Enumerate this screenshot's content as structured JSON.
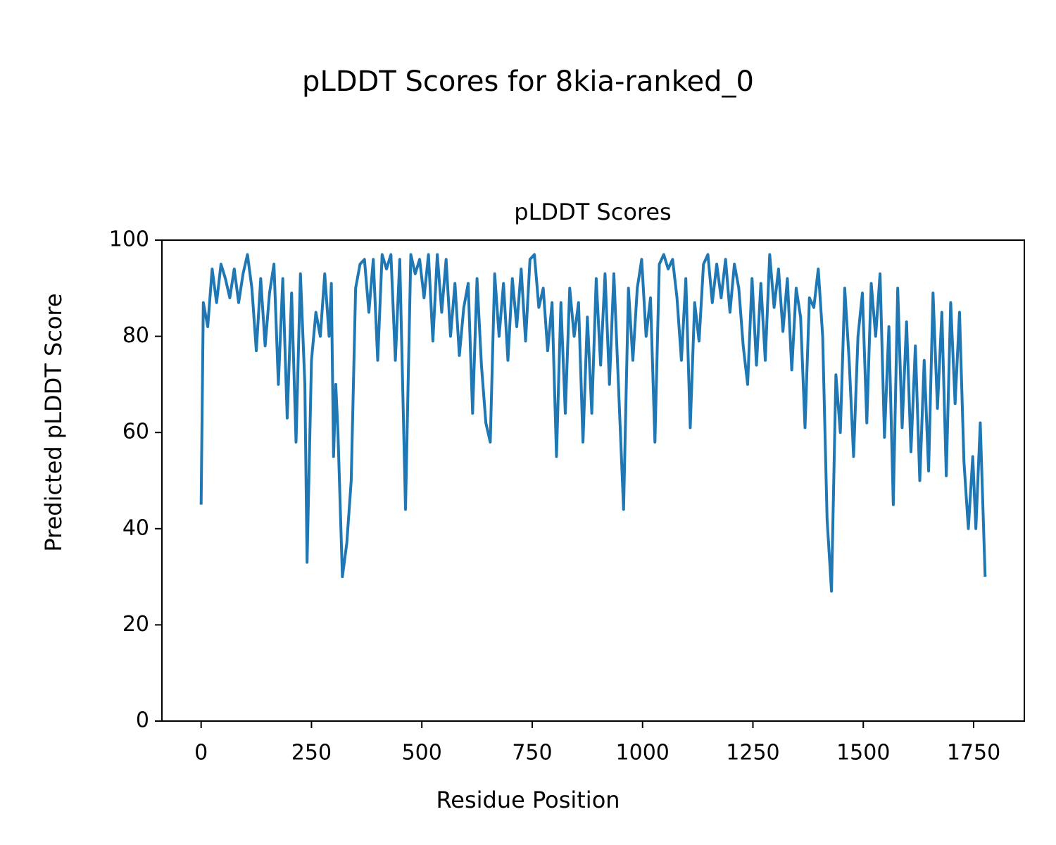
{
  "chart_data": {
    "type": "line",
    "title": "pLDDT Scores for 8kia-ranked_0",
    "subtitle": "pLDDT Scores",
    "x_label": "Residue Position",
    "y_label": "Predicted pLDDT Score",
    "xlim": [
      -88.8,
      1864.8
    ],
    "ylim": [
      0,
      100
    ],
    "xticks": [
      0,
      250,
      500,
      750,
      1000,
      1250,
      1500,
      1750
    ],
    "yticks": [
      0,
      20,
      40,
      60,
      80,
      100
    ],
    "grid": false,
    "x": [
      0,
      5,
      15,
      25,
      35,
      45,
      55,
      65,
      75,
      85,
      95,
      105,
      115,
      125,
      135,
      145,
      155,
      165,
      175,
      185,
      195,
      205,
      215,
      225,
      235,
      240,
      250,
      260,
      270,
      280,
      290,
      295,
      300,
      305,
      310,
      320,
      330,
      340,
      350,
      360,
      370,
      380,
      390,
      400,
      410,
      420,
      430,
      440,
      450,
      463,
      475,
      485,
      495,
      505,
      515,
      525,
      535,
      545,
      555,
      565,
      575,
      585,
      595,
      605,
      615,
      625,
      635,
      645,
      655,
      665,
      675,
      685,
      695,
      705,
      715,
      725,
      735,
      745,
      755,
      765,
      775,
      785,
      795,
      805,
      815,
      825,
      835,
      845,
      855,
      865,
      875,
      885,
      895,
      905,
      915,
      925,
      935,
      957,
      968,
      978,
      988,
      998,
      1008,
      1018,
      1028,
      1038,
      1048,
      1058,
      1068,
      1078,
      1088,
      1098,
      1108,
      1118,
      1128,
      1138,
      1148,
      1158,
      1168,
      1178,
      1188,
      1198,
      1208,
      1218,
      1228,
      1238,
      1248,
      1258,
      1268,
      1278,
      1288,
      1298,
      1308,
      1318,
      1328,
      1338,
      1348,
      1358,
      1368,
      1378,
      1388,
      1398,
      1408,
      1418,
      1428,
      1438,
      1448,
      1458,
      1468,
      1478,
      1488,
      1498,
      1508,
      1518,
      1528,
      1538,
      1548,
      1558,
      1568,
      1578,
      1588,
      1598,
      1608,
      1618,
      1628,
      1638,
      1648,
      1658,
      1668,
      1678,
      1688,
      1698,
      1708,
      1718,
      1728,
      1738,
      1748,
      1755,
      1765,
      1776
    ],
    "series": [
      {
        "name": "pLDDT",
        "color": "#1f77b4",
        "values": [
          45,
          87,
          82,
          94,
          87,
          95,
          92,
          88,
          94,
          87,
          93,
          97,
          90,
          77,
          92,
          78,
          89,
          95,
          70,
          92,
          63,
          89,
          58,
          93,
          70,
          33,
          75,
          85,
          80,
          93,
          80,
          91,
          55,
          70,
          60,
          30,
          37,
          50,
          90,
          95,
          96,
          85,
          96,
          75,
          97,
          94,
          97,
          75,
          96,
          44,
          97,
          93,
          96,
          88,
          97,
          79,
          97,
          85,
          96,
          80,
          91,
          76,
          86,
          91,
          64,
          92,
          74,
          62,
          58,
          93,
          80,
          91,
          75,
          92,
          82,
          94,
          79,
          96,
          97,
          86,
          90,
          77,
          87,
          55,
          87,
          64,
          90,
          80,
          87,
          58,
          84,
          64,
          92,
          74,
          93,
          70,
          93,
          44,
          90,
          75,
          90,
          96,
          80,
          88,
          58,
          95,
          97,
          94,
          96,
          88,
          75,
          92,
          61,
          87,
          79,
          95,
          97,
          87,
          95,
          88,
          96,
          85,
          95,
          90,
          78,
          70,
          92,
          74,
          91,
          75,
          97,
          86,
          94,
          81,
          92,
          73,
          90,
          84,
          61,
          88,
          86,
          94,
          80,
          42,
          27,
          72,
          60,
          90,
          75,
          55,
          80,
          89,
          62,
          91,
          80,
          93,
          59,
          82,
          45,
          90,
          61,
          83,
          56,
          78,
          50,
          75,
          52,
          89,
          65,
          85,
          51,
          87,
          66,
          85,
          54,
          40,
          55,
          40,
          62,
          30
        ]
      }
    ]
  }
}
